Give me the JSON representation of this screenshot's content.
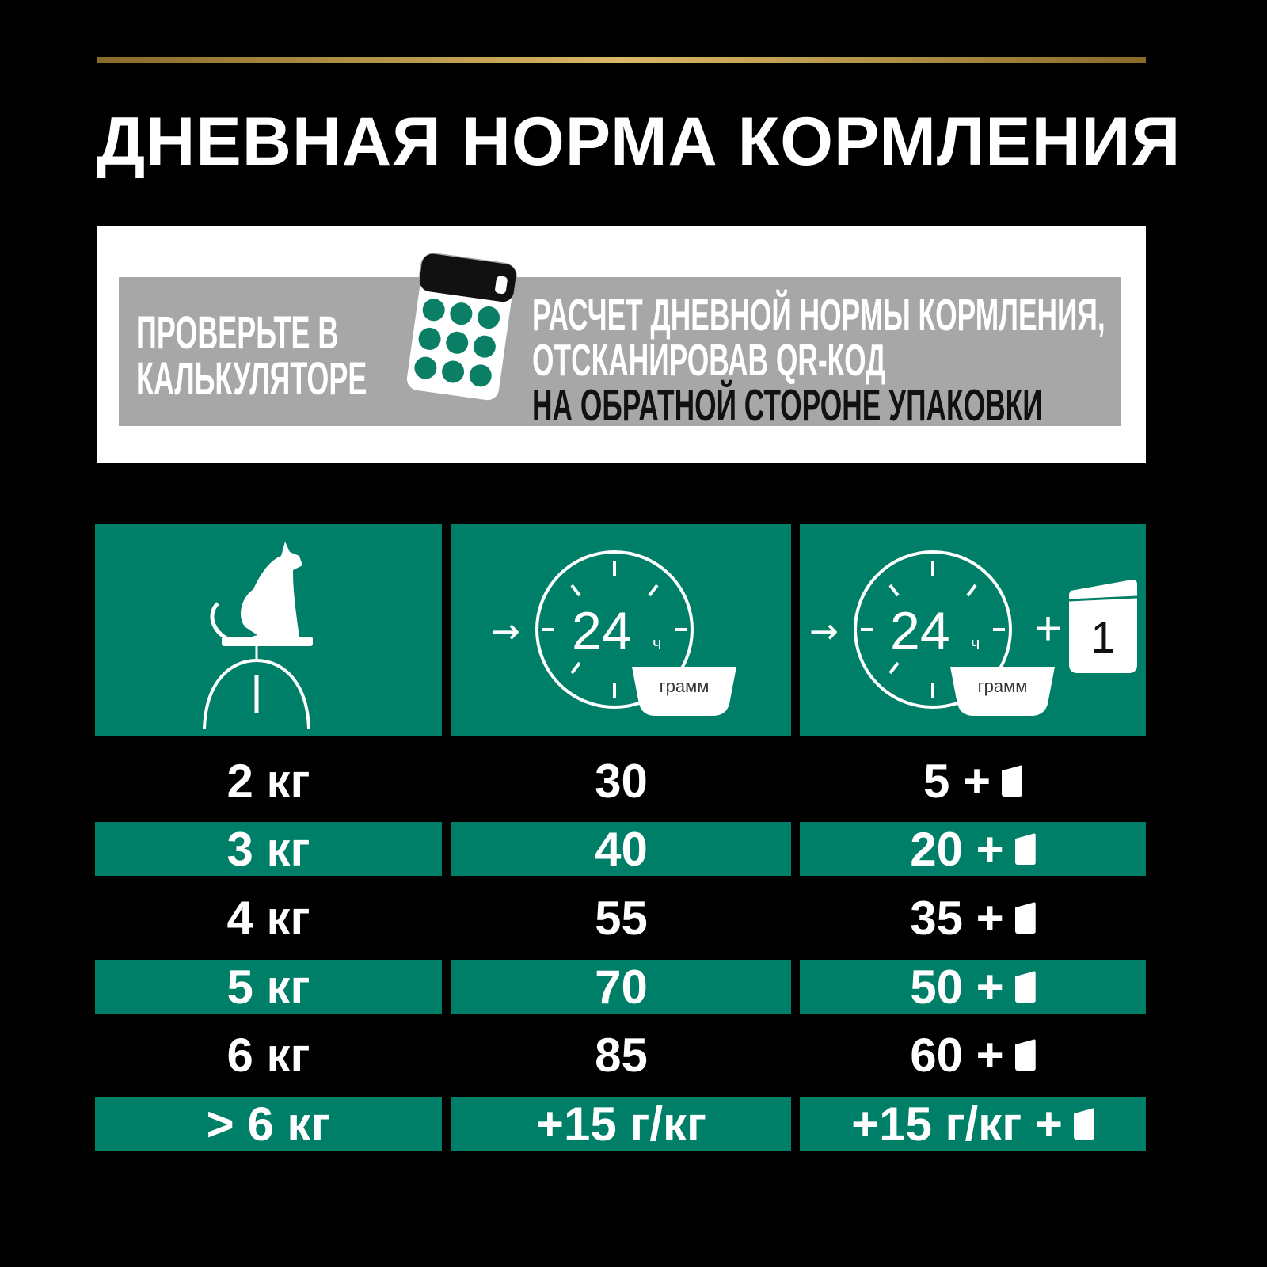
{
  "title": "ДНЕВНАЯ НОРМА КОРМЛЕНИЯ",
  "banner": {
    "left_lines": [
      "ПРОВЕРЬТЕ В",
      "КАЛЬКУЛЯТОРЕ"
    ],
    "right_lines": [
      "РАСЧЕТ ДНЕВНОЙ НОРМЫ КОРМЛЕНИЯ,",
      "ОТСКАНИРОВАВ QR-КОД",
      "НА ОБРАТНОЙ СТОРОНЕ УПАКОВКИ"
    ],
    "icon": "calculator-icon"
  },
  "colors": {
    "green": "#007f68",
    "gray": "#a7a7a7",
    "gold": "#d9b866",
    "background": "#000000"
  },
  "header": {
    "col1_icon": "cat-on-scale-icon",
    "col2": {
      "icon": "clock-24h-bowl-icon",
      "clock_text": "24",
      "clock_unit": "ч",
      "bowl_text": "грамм"
    },
    "col3": {
      "icon": "clock-24h-bowl-plus-pouch-icon",
      "clock_text": "24",
      "clock_unit": "ч",
      "bowl_text": "грамм",
      "plus": "+",
      "pouch_text": "1"
    }
  },
  "rows": [
    {
      "weight": "2 кг",
      "dry": "30",
      "mixed": "5 +"
    },
    {
      "weight": "3 кг",
      "dry": "40",
      "mixed": "20 +"
    },
    {
      "weight": "4 кг",
      "dry": "55",
      "mixed": "35 +"
    },
    {
      "weight": "5 кг",
      "dry": "70",
      "mixed": "50 +"
    },
    {
      "weight": "6 кг",
      "dry": "85",
      "mixed": "60 +"
    },
    {
      "weight": "> 6 кг",
      "dry": "+15 г/кг",
      "mixed": "+15 г/кг +"
    }
  ]
}
